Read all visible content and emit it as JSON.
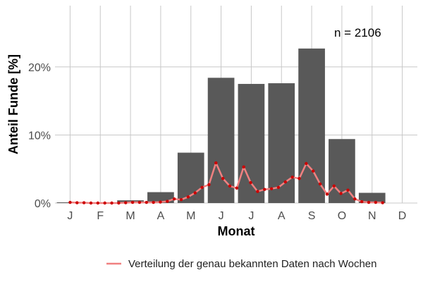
{
  "chart_data": {
    "type": "bar",
    "xlabel": "Monat",
    "ylabel": "Anteil Funde [%]",
    "annotation": "n = 2106",
    "categories": [
      "J",
      "F",
      "M",
      "A",
      "M",
      "J",
      "J",
      "A",
      "S",
      "O",
      "N",
      "D"
    ],
    "series": [
      {
        "values": [
          0.1,
          0.05,
          0.4,
          1.6,
          7.4,
          18.4,
          17.5,
          17.6,
          22.7,
          9.4,
          1.5,
          0.0
        ]
      }
    ],
    "line_series": {
      "name": "Verteilung der genau bekannten Daten nach Wochen",
      "points": [
        [
          1.0,
          0.1
        ],
        [
          1.23,
          0.05
        ],
        [
          1.46,
          0.05
        ],
        [
          1.69,
          0.0
        ],
        [
          1.92,
          0.0
        ],
        [
          2.15,
          0.0
        ],
        [
          2.38,
          0.0
        ],
        [
          2.61,
          0.0
        ],
        [
          2.84,
          0.05
        ],
        [
          3.07,
          0.1
        ],
        [
          3.3,
          0.1
        ],
        [
          3.53,
          0.1
        ],
        [
          3.76,
          0.1
        ],
        [
          3.99,
          0.15
        ],
        [
          4.22,
          0.25
        ],
        [
          4.45,
          0.6
        ],
        [
          4.68,
          0.5
        ],
        [
          4.91,
          0.9
        ],
        [
          5.14,
          1.5
        ],
        [
          5.37,
          2.3
        ],
        [
          5.6,
          2.7
        ],
        [
          5.83,
          5.9
        ],
        [
          6.06,
          3.6
        ],
        [
          6.29,
          2.5
        ],
        [
          6.52,
          2.2
        ],
        [
          6.75,
          5.3
        ],
        [
          6.98,
          3.0
        ],
        [
          7.21,
          1.7
        ],
        [
          7.44,
          2.0
        ],
        [
          7.67,
          2.1
        ],
        [
          7.9,
          2.3
        ],
        [
          8.13,
          3.1
        ],
        [
          8.36,
          3.8
        ],
        [
          8.59,
          3.6
        ],
        [
          8.82,
          5.8
        ],
        [
          9.05,
          4.7
        ],
        [
          9.28,
          2.8
        ],
        [
          9.51,
          1.3
        ],
        [
          9.74,
          2.5
        ],
        [
          9.97,
          1.4
        ],
        [
          10.2,
          1.9
        ],
        [
          10.43,
          0.6
        ],
        [
          10.66,
          0.2
        ],
        [
          10.89,
          0.1
        ],
        [
          11.12,
          0.1
        ],
        [
          11.35,
          0.05
        ]
      ]
    },
    "y_ticks": [
      0,
      10,
      20
    ],
    "y_tick_labels": [
      "0%",
      "10%",
      "20%"
    ],
    "ylim": [
      0,
      29
    ],
    "grid": true,
    "legend_position": "bottom-right",
    "colors": {
      "bars": "#595959",
      "line": "#f08080",
      "points": "#cc0000",
      "grid": "#c8c8c8"
    }
  }
}
